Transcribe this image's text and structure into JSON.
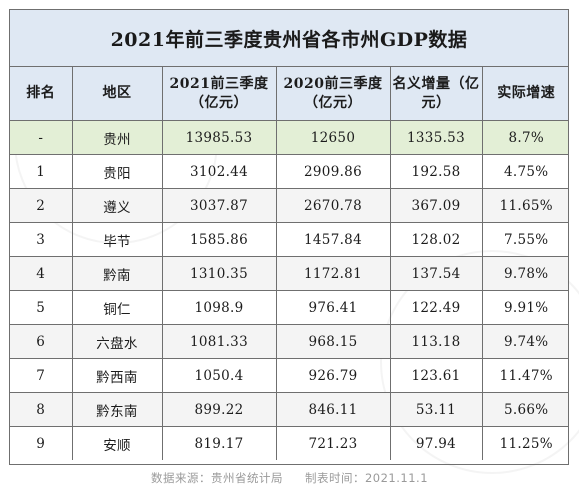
{
  "title": "2021年前三季度贵州省各市州GDP数据",
  "table": {
    "headers": [
      "排名",
      "地区",
      "2021前三季度（亿元）",
      "2020前三季度（亿元）",
      "名义增量（亿元）",
      "实际增速"
    ],
    "rows": [
      [
        "-",
        "贵州",
        "13985.53",
        "12650",
        "1335.53",
        "8.7%"
      ],
      [
        "1",
        "贵阳",
        "3102.44",
        "2909.86",
        "192.58",
        "4.75%"
      ],
      [
        "2",
        "遵义",
        "3037.87",
        "2670.78",
        "367.09",
        "11.65%"
      ],
      [
        "3",
        "毕节",
        "1585.86",
        "1457.84",
        "128.02",
        "7.55%"
      ],
      [
        "4",
        "黔南",
        "1310.35",
        "1172.81",
        "137.54",
        "9.78%"
      ],
      [
        "5",
        "铜仁",
        "1098.9",
        "976.41",
        "122.49",
        "9.91%"
      ],
      [
        "6",
        "六盘水",
        "1081.33",
        "968.15",
        "113.18",
        "9.74%"
      ],
      [
        "7",
        "黔西南",
        "1050.4",
        "926.79",
        "123.61",
        "11.47%"
      ],
      [
        "8",
        "黔东南",
        "899.22",
        "846.11",
        "53.11",
        "5.66%"
      ],
      [
        "9",
        "安顺",
        "819.17",
        "721.23",
        "97.94",
        "11.25%"
      ]
    ]
  },
  "footer": {
    "source": "数据来源：贵州省统计局",
    "date": "制表时间：2021.11.1"
  },
  "colors": {
    "header_bg": "#dfe8f3",
    "highlight_row_bg": "#e3efd6",
    "alt_row_bg": "#f4f4f4",
    "border": "#6f6f6f"
  }
}
